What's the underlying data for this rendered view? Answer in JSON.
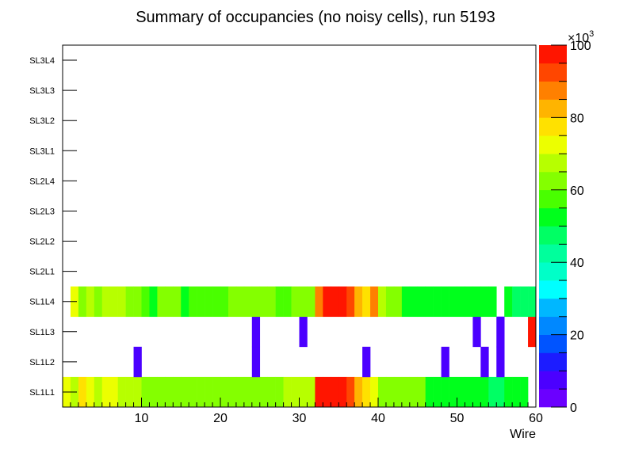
{
  "chart_data": {
    "type": "heatmap",
    "title": "Summary of occupancies (no noisy cells), run 5193",
    "xlabel": "Wire",
    "ylabel": "",
    "xlim": [
      0,
      60
    ],
    "x_ticks": [
      10,
      20,
      30,
      40,
      50,
      60
    ],
    "x_tick_labels": [
      "10",
      "20",
      "30",
      "40",
      "50",
      "60"
    ],
    "layers": [
      "SL1L1",
      "SL1L2",
      "SL1L3",
      "SL1L4",
      "SL2L1",
      "SL2L2",
      "SL2L3",
      "SL2L4",
      "SL3L1",
      "SL3L2",
      "SL3L3",
      "SL3L4"
    ],
    "colorbar": {
      "zlim": [
        0,
        100
      ],
      "ticks": [
        0,
        20,
        40,
        60,
        80,
        100
      ],
      "tick_labels": [
        "0",
        "20",
        "40",
        "60",
        "80",
        "100"
      ],
      "exponent_label": "×10",
      "exponent_power": "3"
    },
    "palette": [
      "#6b00ff",
      "#4b00ff",
      "#1c1cff",
      "#0054ff",
      "#0088ff",
      "#00b7ff",
      "#00ffff",
      "#00ffc8",
      "#00ff9c",
      "#00ff64",
      "#00ff1c",
      "#49ff00",
      "#84ff00",
      "#b7ff00",
      "#ecff00",
      "#ffe100",
      "#ffb400",
      "#ff8000",
      "#ff4600",
      "#ff1500"
    ],
    "rows": {
      "SL1L1": [
        70,
        68,
        78,
        74,
        68,
        72,
        72,
        66,
        66,
        66,
        60,
        60,
        60,
        62,
        62,
        60,
        60,
        62,
        62,
        64,
        64,
        64,
        64,
        64,
        64,
        62,
        62,
        64,
        66,
        66,
        66,
        66,
        98,
        98,
        98,
        98,
        92,
        80,
        75,
        70,
        62,
        62,
        62,
        62,
        62,
        62,
        52,
        52,
        52,
        52,
        52,
        52,
        52,
        52,
        48,
        48,
        52,
        52,
        52,
        null
      ],
      "SL1L2": [
        null,
        null,
        null,
        null,
        null,
        null,
        null,
        null,
        null,
        5,
        null,
        null,
        null,
        null,
        null,
        null,
        null,
        null,
        null,
        null,
        null,
        null,
        null,
        null,
        5,
        null,
        null,
        null,
        null,
        null,
        null,
        null,
        null,
        null,
        null,
        null,
        null,
        null,
        5,
        null,
        null,
        null,
        null,
        null,
        null,
        null,
        null,
        null,
        5,
        null,
        null,
        null,
        null,
        5,
        null,
        5,
        null,
        null,
        null,
        null
      ],
      "SL1L3": [
        null,
        null,
        null,
        null,
        null,
        null,
        null,
        null,
        null,
        null,
        null,
        null,
        null,
        null,
        null,
        null,
        null,
        null,
        null,
        null,
        null,
        null,
        null,
        null,
        5,
        null,
        null,
        null,
        null,
        null,
        5,
        null,
        null,
        null,
        null,
        null,
        null,
        null,
        null,
        null,
        null,
        null,
        null,
        null,
        null,
        null,
        null,
        null,
        null,
        null,
        null,
        null,
        5,
        null,
        null,
        5,
        null,
        null,
        null,
        98
      ],
      "SL1L4": [
        null,
        72,
        62,
        68,
        62,
        66,
        66,
        66,
        62,
        62,
        58,
        54,
        60,
        60,
        60,
        54,
        58,
        58,
        58,
        58,
        58,
        60,
        60,
        60,
        60,
        60,
        60,
        58,
        58,
        60,
        60,
        60,
        85,
        98,
        98,
        95,
        90,
        82,
        75,
        85,
        66,
        62,
        62,
        54,
        54,
        54,
        54,
        50,
        50,
        50,
        50,
        50,
        50,
        50,
        50,
        null,
        50,
        46,
        46,
        46
      ]
    }
  }
}
